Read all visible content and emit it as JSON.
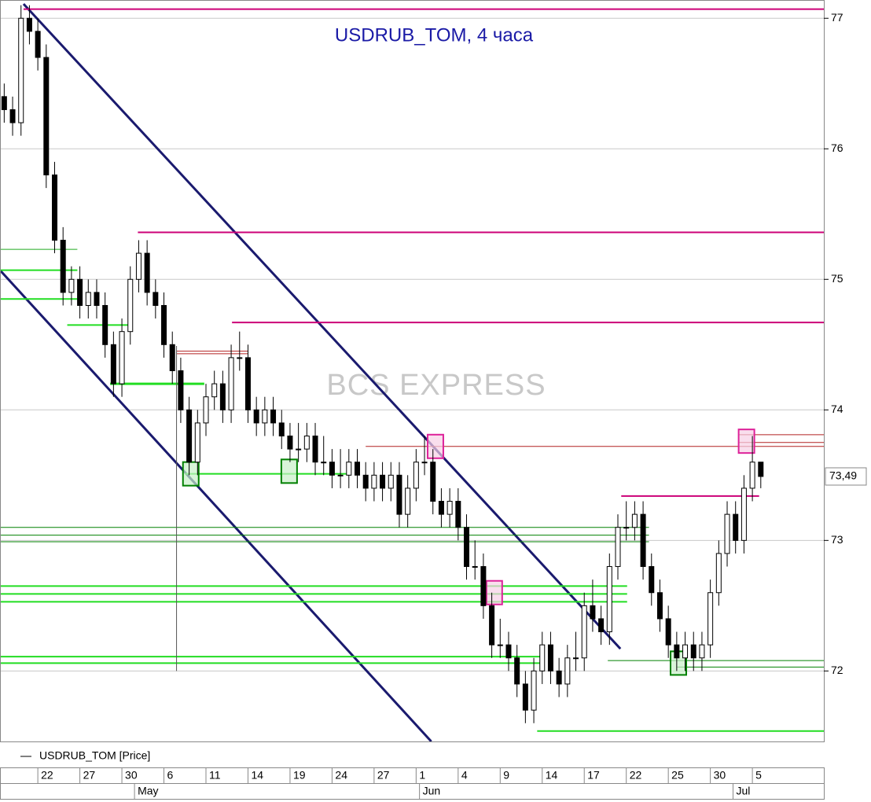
{
  "chart_data": {
    "type": "candlestick",
    "title": "USDRUB_TOM, 4 часа",
    "watermark": "BCS EXPRESS",
    "legend": "USDRUB_TOM [Price]",
    "xlim": [
      -0.5,
      97.5
    ],
    "ylim": [
      71.46,
      77.14
    ],
    "yticks": [
      72,
      73,
      74,
      75,
      76,
      77
    ],
    "grid": true,
    "xticks": [
      {
        "value": 4,
        "label": "22"
      },
      {
        "value": 9,
        "label": "27"
      },
      {
        "value": 14,
        "label": "30"
      },
      {
        "value": 19,
        "label": "6"
      },
      {
        "value": 24,
        "label": "11"
      },
      {
        "value": 29,
        "label": "14"
      },
      {
        "value": 34,
        "label": "19"
      },
      {
        "value": 39,
        "label": "24"
      },
      {
        "value": 44,
        "label": "27"
      },
      {
        "value": 49,
        "label": "1"
      },
      {
        "value": 54,
        "label": "4"
      },
      {
        "value": 59,
        "label": "9"
      },
      {
        "value": 64,
        "label": "14"
      },
      {
        "value": 69,
        "label": "17"
      },
      {
        "value": 74,
        "label": "22"
      },
      {
        "value": 79,
        "label": "25"
      },
      {
        "value": 84,
        "label": "30"
      },
      {
        "value": 89,
        "label": "5"
      }
    ],
    "month_ticks": [
      {
        "value": 15.5,
        "label": "May"
      },
      {
        "value": 49.4,
        "label": "Jun"
      },
      {
        "value": 86.7,
        "label": "Jul"
      }
    ],
    "last_price": {
      "value": 73.49,
      "label": "73,49"
    },
    "up_color": "#ffffff",
    "down_color": "#000000",
    "x": [
      0,
      1,
      2,
      3,
      4,
      5,
      6,
      7,
      8,
      9,
      10,
      11,
      12,
      13,
      14,
      15,
      16,
      17,
      18,
      19,
      20,
      21,
      22,
      23,
      24,
      25,
      26,
      27,
      28,
      29,
      30,
      31,
      32,
      33,
      34,
      35,
      36,
      37,
      38,
      39,
      40,
      41,
      42,
      43,
      44,
      45,
      46,
      47,
      48,
      49,
      50,
      51,
      52,
      53,
      54,
      55,
      56,
      57,
      58,
      59,
      60,
      61,
      62,
      63,
      64,
      65,
      66,
      67,
      68,
      69,
      70,
      71,
      72,
      73,
      74,
      75,
      76,
      77,
      78,
      79,
      80,
      81,
      82,
      83,
      84,
      85,
      86,
      87,
      88,
      89,
      90
    ],
    "open": [
      76.4,
      76.3,
      76.2,
      77.0,
      76.9,
      76.7,
      75.8,
      75.3,
      74.9,
      75.0,
      74.8,
      74.9,
      74.8,
      74.5,
      74.2,
      74.6,
      75.0,
      75.2,
      74.9,
      74.8,
      74.5,
      74.3,
      74.0,
      73.6,
      73.9,
      74.1,
      74.2,
      74.0,
      74.4,
      74.4,
      74.0,
      73.9,
      74.0,
      73.9,
      73.8,
      73.7,
      73.7,
      73.8,
      73.6,
      73.6,
      73.5,
      73.5,
      73.6,
      73.5,
      73.4,
      73.5,
      73.4,
      73.5,
      73.2,
      73.4,
      73.6,
      73.6,
      73.3,
      73.2,
      73.3,
      73.1,
      72.8,
      72.8,
      72.5,
      72.2,
      72.2,
      72.1,
      71.9,
      71.7,
      72.0,
      72.2,
      72.0,
      71.9,
      72.1,
      72.1,
      72.5,
      72.4,
      72.3,
      72.8,
      73.1,
      73.1,
      73.2,
      72.8,
      72.6,
      72.4,
      72.2,
      72.1,
      72.2,
      72.1,
      72.2,
      72.6,
      72.9,
      73.2,
      73.0,
      73.4,
      73.6
    ],
    "high": [
      76.5,
      76.4,
      77.1,
      77.1,
      77.0,
      76.8,
      75.9,
      75.4,
      75.1,
      75.1,
      75.0,
      75.0,
      74.9,
      74.6,
      74.7,
      75.1,
      75.3,
      75.3,
      75.0,
      74.9,
      74.6,
      74.4,
      74.1,
      74.0,
      74.2,
      74.3,
      74.3,
      74.5,
      74.6,
      74.5,
      74.1,
      74.1,
      74.1,
      74.0,
      73.9,
      73.9,
      73.9,
      73.9,
      73.8,
      73.7,
      73.7,
      73.7,
      73.7,
      73.6,
      73.6,
      73.6,
      73.6,
      73.6,
      73.5,
      73.7,
      73.8,
      73.7,
      73.4,
      73.4,
      73.4,
      73.2,
      73.0,
      72.9,
      72.6,
      72.4,
      72.3,
      72.2,
      72.0,
      72.1,
      72.3,
      72.3,
      72.1,
      72.2,
      72.3,
      72.6,
      72.7,
      72.5,
      72.9,
      73.2,
      73.3,
      73.3,
      73.3,
      72.9,
      72.7,
      72.5,
      72.3,
      72.3,
      72.3,
      72.3,
      72.7,
      73.0,
      73.3,
      73.3,
      73.5,
      73.8,
      73.6
    ],
    "low": [
      76.2,
      76.1,
      76.1,
      76.8,
      76.6,
      75.7,
      75.2,
      74.8,
      74.8,
      74.7,
      74.7,
      74.7,
      74.4,
      74.1,
      74.1,
      74.5,
      74.9,
      74.8,
      74.7,
      74.4,
      74.2,
      73.9,
      73.5,
      73.5,
      73.8,
      74.0,
      73.9,
      73.9,
      74.3,
      73.9,
      73.8,
      73.8,
      73.8,
      73.7,
      73.6,
      73.6,
      73.6,
      73.5,
      73.5,
      73.4,
      73.4,
      73.4,
      73.4,
      73.3,
      73.3,
      73.3,
      73.3,
      73.1,
      73.1,
      73.3,
      73.5,
      73.2,
      73.1,
      73.1,
      73.0,
      72.7,
      72.7,
      72.4,
      72.1,
      72.1,
      72.0,
      71.8,
      71.6,
      71.6,
      71.9,
      71.9,
      71.8,
      71.8,
      72.0,
      72.0,
      72.3,
      72.2,
      72.2,
      72.7,
      73.0,
      73.0,
      72.7,
      72.5,
      72.3,
      72.1,
      72.0,
      72.0,
      72.0,
      72.0,
      72.1,
      72.5,
      72.8,
      72.9,
      72.9,
      73.3,
      73.4
    ],
    "close": [
      76.3,
      76.2,
      77.0,
      76.9,
      76.7,
      75.8,
      75.3,
      74.9,
      75.0,
      74.8,
      74.9,
      74.8,
      74.5,
      74.2,
      74.6,
      75.0,
      75.2,
      74.9,
      74.8,
      74.5,
      74.3,
      74.0,
      73.6,
      73.9,
      74.1,
      74.2,
      74.0,
      74.4,
      74.4,
      74.0,
      73.9,
      74.0,
      73.9,
      73.8,
      73.7,
      73.7,
      73.8,
      73.6,
      73.6,
      73.5,
      73.5,
      73.6,
      73.5,
      73.4,
      73.5,
      73.4,
      73.5,
      73.2,
      73.4,
      73.6,
      73.6,
      73.3,
      73.2,
      73.3,
      73.1,
      72.8,
      72.8,
      72.5,
      72.2,
      72.2,
      72.1,
      71.9,
      71.7,
      72.0,
      72.2,
      72.0,
      71.9,
      72.1,
      72.1,
      72.5,
      72.4,
      72.3,
      72.8,
      73.1,
      73.1,
      73.2,
      72.8,
      72.6,
      72.4,
      72.2,
      72.1,
      72.2,
      72.1,
      72.2,
      72.6,
      72.9,
      73.2,
      73.0,
      73.4,
      73.6,
      73.49
    ],
    "drawings": [
      {
        "color": "#1a1a6e",
        "width": 3,
        "x": [
          2.3,
          73.3
        ],
        "y": [
          77.11,
          72.17
        ]
      },
      {
        "color": "#1a1a6e",
        "width": 3,
        "x": [
          -0.5,
          50.8
        ],
        "y": [
          75.07,
          71.46
        ]
      },
      {
        "color": "#cc0077",
        "width": 2,
        "x": [
          2.3,
          97.5
        ],
        "y": [
          77.07,
          77.07
        ]
      },
      {
        "color": "#cc0077",
        "width": 2,
        "x": [
          15.9,
          97.5
        ],
        "y": [
          75.36,
          75.36
        ]
      },
      {
        "color": "#cc0077",
        "width": 2,
        "x": [
          27.1,
          97.5
        ],
        "y": [
          74.67,
          74.67
        ]
      },
      {
        "color": "#cc0077",
        "width": 2,
        "x": [
          73.4,
          89.8
        ],
        "y": [
          73.34,
          73.34
        ]
      },
      {
        "color": "#b22222",
        "width": 1,
        "x": [
          43,
          97.5
        ],
        "y": [
          73.72,
          73.72
        ]
      },
      {
        "color": "#b22222",
        "width": 1,
        "x": [
          87.4,
          97.5
        ],
        "y": [
          73.81,
          73.81
        ]
      },
      {
        "color": "#b22222",
        "width": 1,
        "x": [
          87.4,
          97.5
        ],
        "y": [
          73.75,
          73.75
        ]
      },
      {
        "color": "#b22222",
        "width": 1,
        "x": [
          20.5,
          29
        ],
        "y": [
          74.45,
          74.45
        ]
      },
      {
        "color": "#b22222",
        "width": 1,
        "x": [
          20.5,
          29
        ],
        "y": [
          74.43,
          74.43
        ]
      },
      {
        "color": "#008000",
        "width": 1,
        "x": [
          -0.5,
          76.7
        ],
        "y": [
          73.1,
          73.1
        ]
      },
      {
        "color": "#008000",
        "width": 1,
        "x": [
          -0.5,
          76.7
        ],
        "y": [
          73.04,
          73.04
        ]
      },
      {
        "color": "#008000",
        "width": 1,
        "x": [
          -0.5,
          76.7
        ],
        "y": [
          72.99,
          72.99
        ]
      },
      {
        "color": "#22dd22",
        "width": 2,
        "x": [
          -0.5,
          74.1
        ],
        "y": [
          72.65,
          72.65
        ]
      },
      {
        "color": "#22dd22",
        "width": 2,
        "x": [
          -0.5,
          74.1
        ],
        "y": [
          72.59,
          72.59
        ]
      },
      {
        "color": "#22dd22",
        "width": 2,
        "x": [
          -0.5,
          74.1
        ],
        "y": [
          72.53,
          72.53
        ]
      },
      {
        "color": "#22dd22",
        "width": 2,
        "x": [
          -0.5,
          64
        ],
        "y": [
          72.11,
          72.11
        ]
      },
      {
        "color": "#22dd22",
        "width": 2,
        "x": [
          -0.5,
          64
        ],
        "y": [
          72.06,
          72.06
        ]
      },
      {
        "color": "#22dd22",
        "width": 2,
        "x": [
          63.4,
          97.5
        ],
        "y": [
          71.54,
          71.54
        ]
      },
      {
        "color": "#008000",
        "width": 1,
        "x": [
          71.8,
          97.5
        ],
        "y": [
          72.08,
          72.08
        ]
      },
      {
        "color": "#008000",
        "width": 1,
        "x": [
          80,
          97.5
        ],
        "y": [
          72.03,
          72.03
        ]
      },
      {
        "color": "#22dd22",
        "width": 2,
        "x": [
          21.5,
          40.7
        ],
        "y": [
          73.51,
          73.51
        ]
      },
      {
        "color": "#22dd22",
        "width": 3,
        "x": [
          12.6,
          23.8
        ],
        "y": [
          74.2,
          74.2
        ]
      },
      {
        "color": "#22aa22",
        "width": 1,
        "x": [
          -0.5,
          8.7
        ],
        "y": [
          75.23,
          75.23
        ]
      },
      {
        "color": "#22dd22",
        "width": 2,
        "x": [
          -0.5,
          8.7
        ],
        "y": [
          75.07,
          75.07
        ]
      },
      {
        "color": "#22dd22",
        "width": 2,
        "x": [
          -0.5,
          8.7
        ],
        "y": [
          74.85,
          74.85
        ]
      },
      {
        "color": "#22dd22",
        "width": 2,
        "x": [
          7.5,
          14.8
        ],
        "y": [
          74.65,
          74.65
        ]
      },
      {
        "color": "#555555",
        "width": 1,
        "x": [
          20.5,
          20.5
        ],
        "y": [
          74.49,
          72.0
        ]
      }
    ],
    "boxes": [
      {
        "color": "#008000",
        "fill": "#c8f0c8",
        "x": 22.2,
        "y": 73.51
      },
      {
        "color": "#008000",
        "fill": "#c8f0c8",
        "x": 33.9,
        "y": 73.53
      },
      {
        "color": "#008000",
        "fill": "#c8f0c8",
        "x": 80.2,
        "y": 72.06
      },
      {
        "color": "#dd2299",
        "fill": "#f6d0e6",
        "x": 51.3,
        "y": 73.72
      },
      {
        "color": "#dd2299",
        "fill": "#f6d0e6",
        "x": 58.3,
        "y": 72.6
      },
      {
        "color": "#dd2299",
        "fill": "#f6d0e6",
        "x": 88.3,
        "y": 73.76
      }
    ]
  }
}
